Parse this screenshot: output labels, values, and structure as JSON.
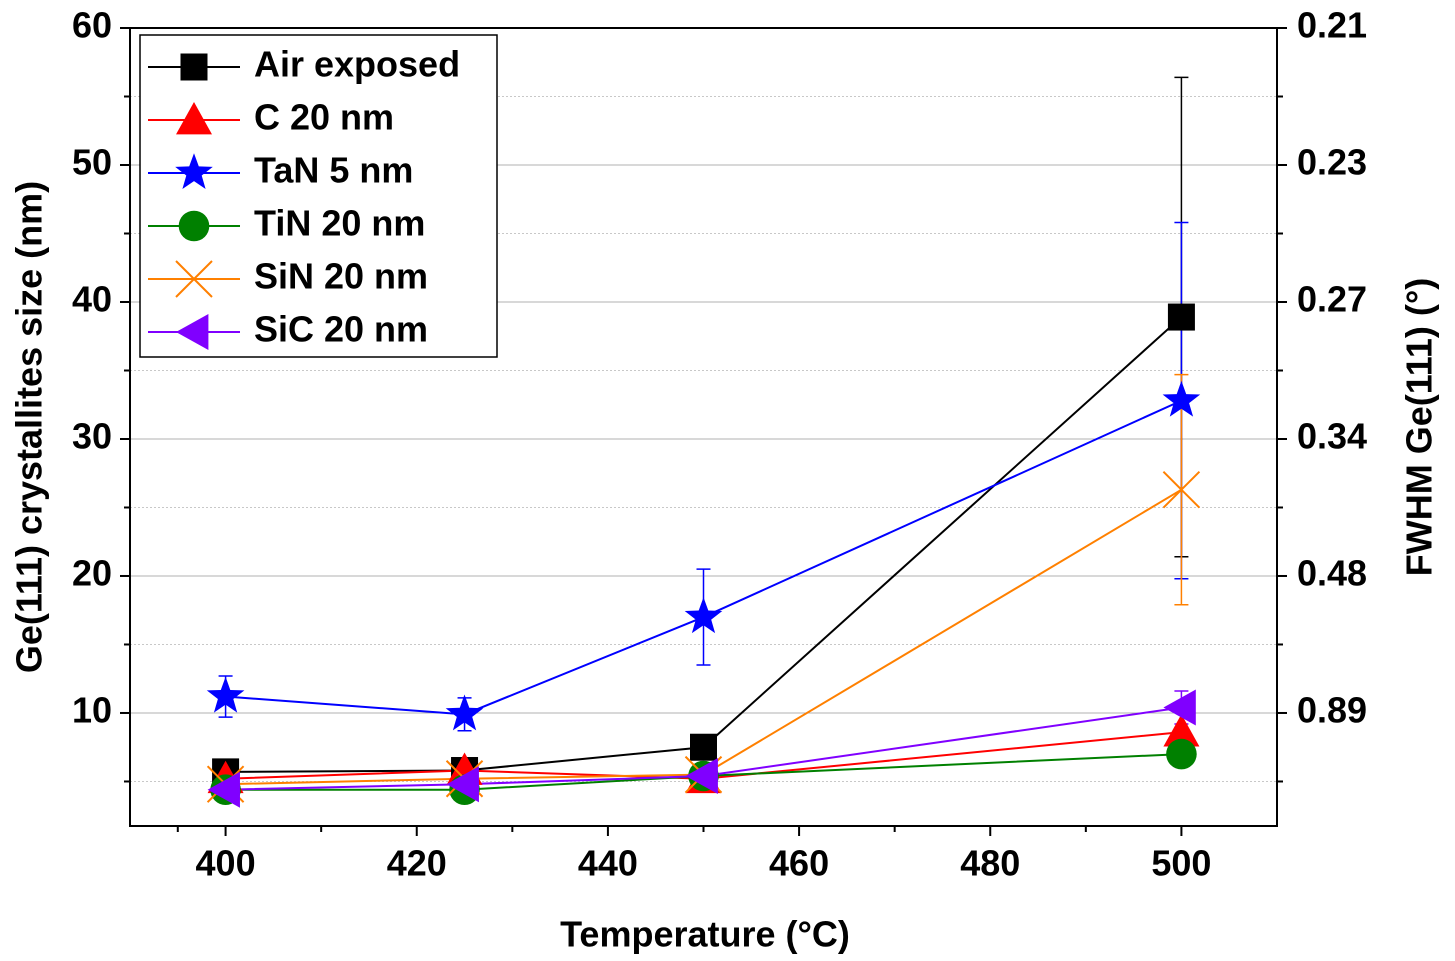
{
  "chart_data": {
    "type": "line",
    "xlabel": "Temperature (°C)",
    "ylabel": "Ge(111) crystallites size (nm)",
    "y2label": "FWHM Ge(111) (°)",
    "x": [
      400,
      425,
      450,
      500
    ],
    "xlim": [
      390,
      510
    ],
    "xticks": [
      400,
      420,
      440,
      460,
      480,
      500
    ],
    "ylim": [
      1.75,
      60
    ],
    "yticks": [
      10,
      20,
      30,
      40,
      50,
      60
    ],
    "y2ticks": [
      0.89,
      0.48,
      0.34,
      0.27,
      0.23,
      0.21
    ],
    "grid": true,
    "legend": "upper left",
    "series": [
      {
        "name": "Air exposed",
        "color": "#000000",
        "marker": "square",
        "values": [
          5.7,
          5.8,
          7.5,
          38.9
        ],
        "errors": [
          null,
          null,
          null,
          17.5
        ]
      },
      {
        "name": "C 20 nm",
        "color": "#ff0000",
        "marker": "triangle",
        "values": [
          5.2,
          5.8,
          5.2,
          8.6
        ],
        "errors": [
          null,
          null,
          null,
          null
        ]
      },
      {
        "name": "TaN 5 nm",
        "color": "#0000ff",
        "marker": "star",
        "values": [
          11.2,
          9.9,
          17.0,
          32.8
        ],
        "errors": [
          1.5,
          1.2,
          3.5,
          13
        ]
      },
      {
        "name": "TiN 20 nm",
        "color": "#008000",
        "marker": "circle",
        "values": [
          4.4,
          4.4,
          5.4,
          7.0
        ],
        "errors": [
          null,
          null,
          null,
          null
        ]
      },
      {
        "name": "SiN 20 nm",
        "color": "#ff8000",
        "marker": "x",
        "values": [
          4.8,
          5.2,
          5.5,
          26.3
        ],
        "errors": [
          null,
          null,
          null,
          8.4
        ]
      },
      {
        "name": "SiC 20 nm",
        "color": "#8000ff",
        "marker": "left-triangle",
        "values": [
          4.4,
          4.8,
          5.4,
          10.4
        ],
        "errors": [
          null,
          null,
          null,
          1.2
        ]
      }
    ]
  }
}
